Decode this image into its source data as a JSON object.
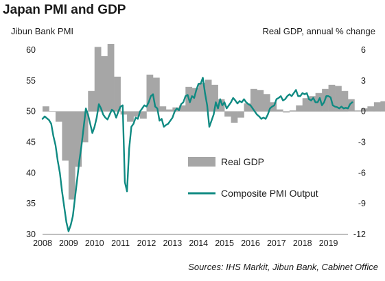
{
  "chart_data": {
    "type": "bar+line",
    "title": "Japan PMI and GDP",
    "ylabel_left": "Jibun Bank PMI",
    "ylabel_right": "Real GDP, annual % change",
    "source": "Sources: IHS Markit, Jibun Bank, Cabinet Office",
    "ylim_left": [
      30,
      60
    ],
    "ylim_right": [
      -12,
      6
    ],
    "yticks_left": [
      "60",
      "55",
      "50",
      "45",
      "40",
      "35",
      "30"
    ],
    "yticks_right": [
      "6",
      "3",
      "0",
      "-3",
      "-6",
      "-9",
      "-12"
    ],
    "xlim": [
      2008,
      2019.75
    ],
    "xticks": [
      "2008",
      "2009",
      "2010",
      "2011",
      "2012",
      "2013",
      "2014",
      "2015",
      "2016",
      "2017",
      "2018",
      "2019"
    ],
    "legend": {
      "position": "center",
      "items": [
        "Real GDP",
        "Composite PMI Output"
      ]
    },
    "colors": {
      "gdp": "#a6a6a6",
      "pmi": "#0f8a82"
    },
    "gdp_quarterly": {
      "start": 2008,
      "name": "Real GDP",
      "values": [
        0.5,
        0,
        -1.0,
        -4.8,
        -8.6,
        -5.4,
        -3.0,
        2.0,
        6.3,
        5.4,
        6.6,
        3.4,
        -0.3,
        -1.0,
        -0.5,
        -0.7,
        3.6,
        3.3,
        0.5,
        0.2,
        0.4,
        0.6,
        2.4,
        2.3,
        2.8,
        3.1,
        2.6,
        1.2,
        -0.5,
        -1.1,
        -0.6,
        0.8,
        2.2,
        2.1,
        1.7,
        0.9,
        0.2,
        -0.1,
        0.1,
        0.6,
        1.3,
        1.5,
        1.8,
        2.2,
        2.6,
        2.5,
        2.0,
        1.2,
        0.1,
        0.3,
        0.5,
        0.9,
        1.0,
        1.0
      ]
    },
    "pmi_monthly": {
      "start": 2008,
      "name": "Composite PMI Output",
      "values": [
        48.8,
        49.2,
        48.9,
        48.6,
        48.0,
        46.0,
        44.5,
        42.0,
        40.0,
        37.0,
        34.5,
        32.0,
        30.5,
        31.5,
        33.0,
        36.0,
        39.0,
        42.0,
        44.5,
        47.5,
        50.5,
        49.5,
        48.0,
        46.5,
        47.5,
        49.0,
        51.2,
        50.5,
        49.5,
        49.0,
        48.7,
        49.5,
        50.3,
        50.0,
        49.0,
        50.0,
        50.8,
        51.0,
        38.5,
        37.0,
        44.0,
        47.5,
        48.0,
        49.0,
        48.8,
        50.0,
        50.5,
        51.0,
        50.8,
        51.5,
        52.5,
        52.8,
        50.8,
        50.5,
        48.5,
        48.8,
        47.5,
        47.8,
        48.0,
        48.5,
        49.0,
        50.0,
        50.5,
        50.2,
        51.2,
        51.5,
        52.5,
        52.7,
        51.5,
        52.5,
        52.2,
        53.5,
        54.5,
        54.5,
        55.5,
        53.0,
        51.0,
        47.5,
        48.5,
        49.5,
        51.5,
        50.5,
        52.0,
        51.0,
        51.5,
        50.5,
        51.0,
        51.5,
        52.2,
        51.8,
        51.3,
        51.7,
        51.5,
        52.0,
        51.5,
        51.2,
        51.0,
        50.5,
        50.0,
        49.5,
        49.2,
        48.8,
        49.0,
        48.8,
        49.5,
        50.5,
        50.8,
        51.0,
        52.0,
        52.2,
        52.5,
        51.8,
        52.0,
        52.5,
        52.8,
        52.5,
        53.0,
        53.5,
        52.5,
        52.5,
        53.0,
        52.8,
        53.0,
        52.0,
        51.8,
        52.2,
        51.5,
        51.5,
        52.2,
        51.0,
        51.5,
        52.5,
        52.5,
        52.3,
        51.0,
        50.8,
        50.7,
        50.5,
        50.8,
        50.5,
        50.6,
        50.5,
        51.2,
        51.5
      ]
    }
  }
}
